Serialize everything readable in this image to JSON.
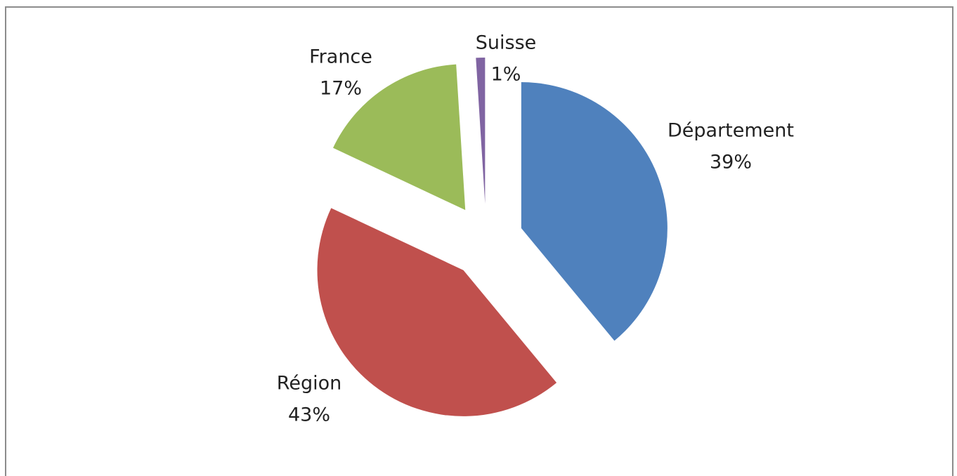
{
  "chart_data": {
    "type": "pie",
    "categories": [
      "Département",
      "Région",
      "France",
      "Suisse"
    ],
    "values": [
      39,
      43,
      17,
      1
    ],
    "value_labels": [
      "39%",
      "43%",
      "17%",
      "1%"
    ],
    "colors": [
      "#4f81bd",
      "#c0504d",
      "#9bbb59",
      "#8064a2"
    ],
    "exploded": true
  }
}
